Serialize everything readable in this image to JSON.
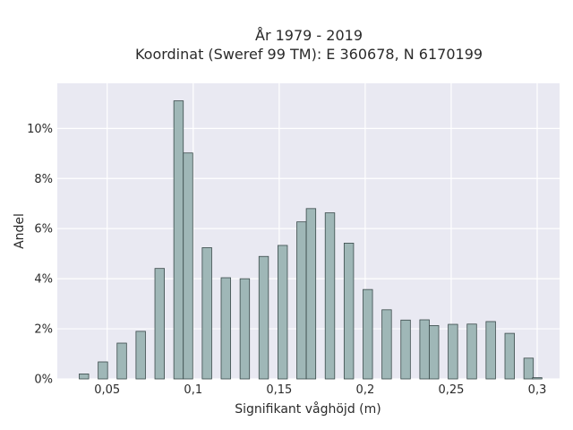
{
  "chart_data": {
    "type": "bar",
    "title_line1": "År 1979 - 2019",
    "title_line2": "Koordinat (Sweref 99 TM): E 360678, N 6170199",
    "xlabel": "Signifikant våghöjd (m)",
    "ylabel": "Andel",
    "xlim": [
      0.021,
      0.313
    ],
    "ylim": [
      0,
      0.118
    ],
    "x_ticks": [
      {
        "value": 0.05,
        "label": "0,05"
      },
      {
        "value": 0.1,
        "label": "0,1"
      },
      {
        "value": 0.15,
        "label": "0,15"
      },
      {
        "value": 0.2,
        "label": "0,2"
      },
      {
        "value": 0.25,
        "label": "0,25"
      },
      {
        "value": 0.3,
        "label": "0,3"
      }
    ],
    "y_ticks": [
      {
        "value": 0,
        "label": "0%"
      },
      {
        "value": 0.02,
        "label": "2%"
      },
      {
        "value": 0.04,
        "label": "4%"
      },
      {
        "value": 0.06,
        "label": "6%"
      },
      {
        "value": 0.08,
        "label": "8%"
      },
      {
        "value": 0.1,
        "label": "10%"
      }
    ],
    "grid": true,
    "bar_width": 0.0055,
    "bar_color": "#9fb7b7",
    "bar_edge_color": "#3a4a4a",
    "plot_background": "#e9e9f2",
    "bars": [
      {
        "x": 0.0365,
        "value": 0.002
      },
      {
        "x": 0.0475,
        "value": 0.0068
      },
      {
        "x": 0.0585,
        "value": 0.0143
      },
      {
        "x": 0.0695,
        "value": 0.019
      },
      {
        "x": 0.0805,
        "value": 0.0441
      },
      {
        "x": 0.0915,
        "value": 0.111
      },
      {
        "x": 0.097,
        "value": 0.0902
      },
      {
        "x": 0.108,
        "value": 0.0524
      },
      {
        "x": 0.119,
        "value": 0.0404
      },
      {
        "x": 0.13,
        "value": 0.04
      },
      {
        "x": 0.141,
        "value": 0.0489
      },
      {
        "x": 0.152,
        "value": 0.0533
      },
      {
        "x": 0.163,
        "value": 0.0627
      },
      {
        "x": 0.1685,
        "value": 0.068
      },
      {
        "x": 0.1795,
        "value": 0.0663
      },
      {
        "x": 0.1905,
        "value": 0.0542
      },
      {
        "x": 0.2015,
        "value": 0.0357
      },
      {
        "x": 0.2125,
        "value": 0.0276
      },
      {
        "x": 0.2235,
        "value": 0.0235
      },
      {
        "x": 0.2345,
        "value": 0.0236
      },
      {
        "x": 0.24,
        "value": 0.0213
      },
      {
        "x": 0.251,
        "value": 0.0218
      },
      {
        "x": 0.262,
        "value": 0.0219
      },
      {
        "x": 0.273,
        "value": 0.0229
      },
      {
        "x": 0.284,
        "value": 0.0182
      },
      {
        "x": 0.295,
        "value": 0.0083
      },
      {
        "x": 0.3,
        "value": 0.0005
      }
    ]
  }
}
